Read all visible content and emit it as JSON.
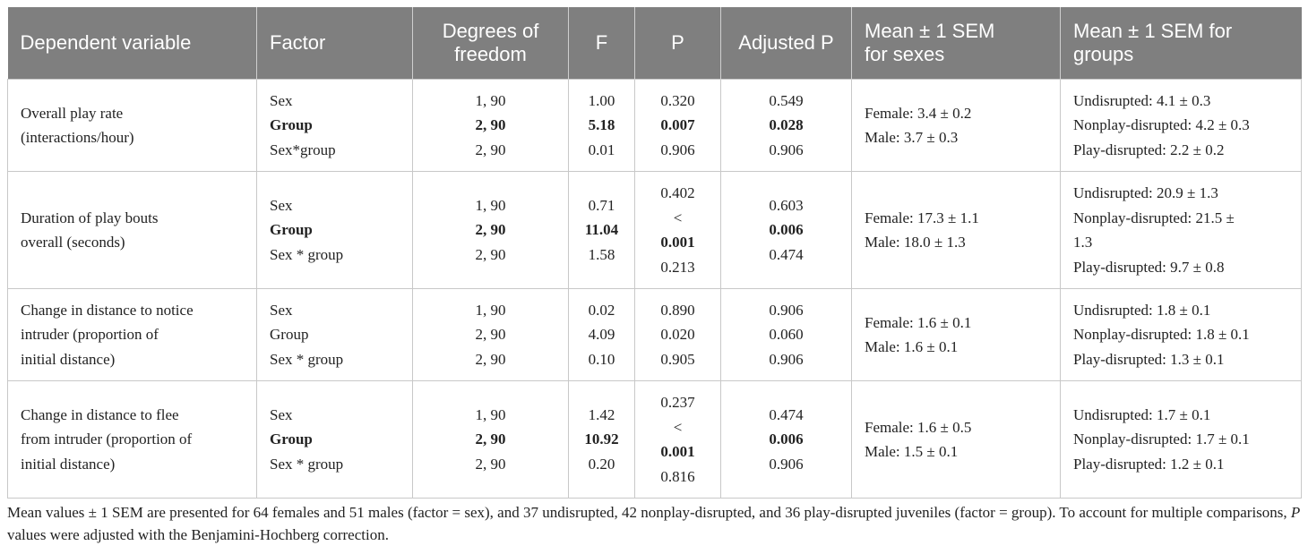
{
  "headers": [
    "Dependent variable",
    "Factor",
    "Degrees of freedom",
    "F",
    "P",
    "Adjusted P",
    "Mean ± 1 SEM for sexes",
    "Mean ± 1 SEM for groups"
  ],
  "rows": [
    {
      "variable": [
        "Overall play rate",
        "(interactions/hour)"
      ],
      "factors": [
        "Sex",
        "Group",
        "Sex*group"
      ],
      "df": [
        "1, 90",
        "2, 90",
        "2, 90"
      ],
      "f": [
        "1.00",
        "5.18",
        "0.01"
      ],
      "p": [
        "0.320",
        "0.007",
        "0.906"
      ],
      "adj_p": [
        "0.549",
        "0.028",
        "0.906"
      ],
      "sexes": [
        "Female: 3.4 ± 0.2",
        "Male: 3.7 ± 0.3"
      ],
      "groups": [
        "Undisrupted: 4.1 ± 0.3",
        "Nonplay-disrupted: 4.2 ± 0.3",
        "Play-disrupted: 2.2 ± 0.2"
      ]
    },
    {
      "variable": [
        "Duration of play bouts",
        "overall (seconds)"
      ],
      "factors": [
        "Sex",
        "Group",
        "Sex * group"
      ],
      "df": [
        "1, 90",
        "2, 90",
        "2, 90"
      ],
      "f": [
        "0.71",
        "11.04",
        "1.58"
      ],
      "p": [
        "0.402",
        "<",
        "0.001",
        "0.213"
      ],
      "adj_p": [
        "0.603",
        "0.006",
        "0.474"
      ],
      "sexes": [
        "Female: 17.3 ± 1.1",
        "Male: 18.0 ± 1.3"
      ],
      "groups": [
        "Undisrupted: 20.9 ± 1.3",
        "Nonplay-disrupted: 21.5 ±",
        "1.3",
        "Play-disrupted: 9.7 ± 0.8"
      ]
    },
    {
      "variable": [
        "Change in distance to notice",
        "intruder (proportion of",
        "initial distance)"
      ],
      "factors": [
        "Sex",
        "Group",
        "Sex * group"
      ],
      "df": [
        "1, 90",
        "2, 90",
        "2, 90"
      ],
      "f": [
        "0.02",
        "4.09",
        "0.10"
      ],
      "p": [
        "0.890",
        "0.020",
        "0.905"
      ],
      "adj_p": [
        "0.906",
        "0.060",
        "0.906"
      ],
      "sexes": [
        "Female: 1.6 ± 0.1",
        "Male: 1.6 ± 0.1"
      ],
      "groups": [
        "Undisrupted: 1.8 ± 0.1",
        "Nonplay-disrupted: 1.8 ± 0.1",
        "Play-disrupted: 1.3 ± 0.1"
      ]
    },
    {
      "variable": [
        "Change in distance to flee",
        "from intruder (proportion of",
        "initial distance)"
      ],
      "factors": [
        "Sex",
        "Group",
        "Sex * group"
      ],
      "df": [
        "1, 90",
        "2, 90",
        "2, 90"
      ],
      "f": [
        "1.42",
        "10.92",
        "0.20"
      ],
      "p": [
        "0.237",
        "<",
        "0.001",
        "0.816"
      ],
      "adj_p": [
        "0.474",
        "0.006",
        "0.906"
      ],
      "sexes": [
        "Female: 1.6 ± 0.5",
        "Male: 1.5 ± 0.1"
      ],
      "groups": [
        "Undisrupted: 1.7 ± 0.1",
        "Nonplay-disrupted: 1.7 ± 0.1",
        "Play-disrupted: 1.2 ± 0.1"
      ]
    }
  ],
  "footnote": {
    "part1": "Mean values ± 1 SEM are presented for 64 females and 51 males (factor = sex), and 37 undisrupted, 42 nonplay-disrupted, and 36 play-disrupted juveniles (factor = group). To account for multiple comparisons, ",
    "italic": "P",
    "part2": " values were adjusted with the Benjamini-Hochberg correction."
  }
}
